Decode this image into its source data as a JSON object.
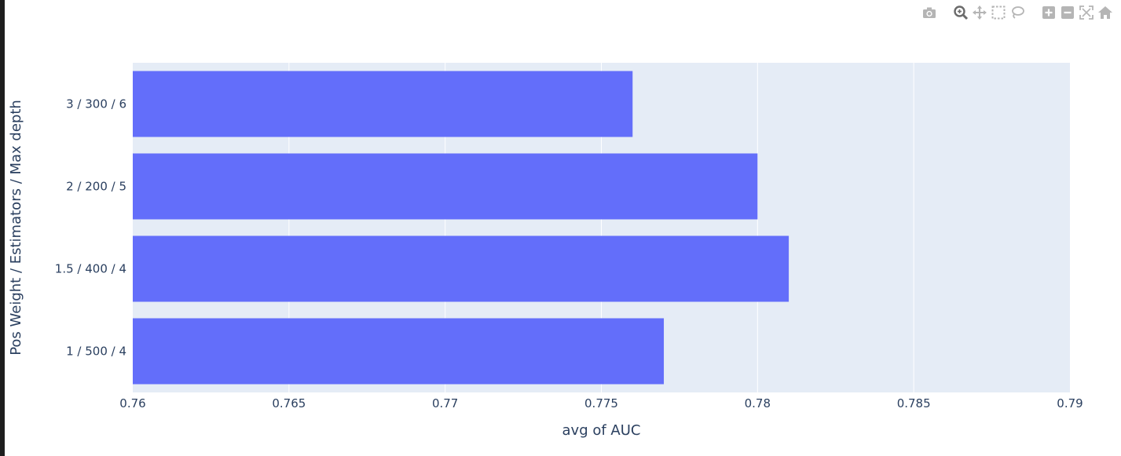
{
  "modebar": {
    "icons": [
      "camera-icon",
      "zoom-icon",
      "pan-icon",
      "box-select-icon",
      "lasso-icon",
      "zoom-in-icon",
      "zoom-out-icon",
      "autoscale-icon",
      "reset-axes-icon"
    ]
  },
  "colors": {
    "bar": "#636efa",
    "plot_bg": "#e5ecf6",
    "grid": "#ffffff",
    "text": "#2a3f5f",
    "modebar_icon": "#b5b5b5"
  },
  "chart_data": {
    "type": "bar",
    "orientation": "horizontal",
    "categories": [
      "1 / 500 / 4",
      "1.5 / 400 / 4",
      "2 / 200 / 5",
      "3 / 300 / 6"
    ],
    "values": [
      0.777,
      0.781,
      0.78,
      0.776
    ],
    "xlabel": "avg of AUC",
    "ylabel": "Pos Weight / Estimators / Max depth",
    "xlim": [
      0.76,
      0.79
    ],
    "xticks": [
      "0.76",
      "0.765",
      "0.77",
      "0.775",
      "0.78",
      "0.785",
      "0.79"
    ],
    "grid": true
  }
}
